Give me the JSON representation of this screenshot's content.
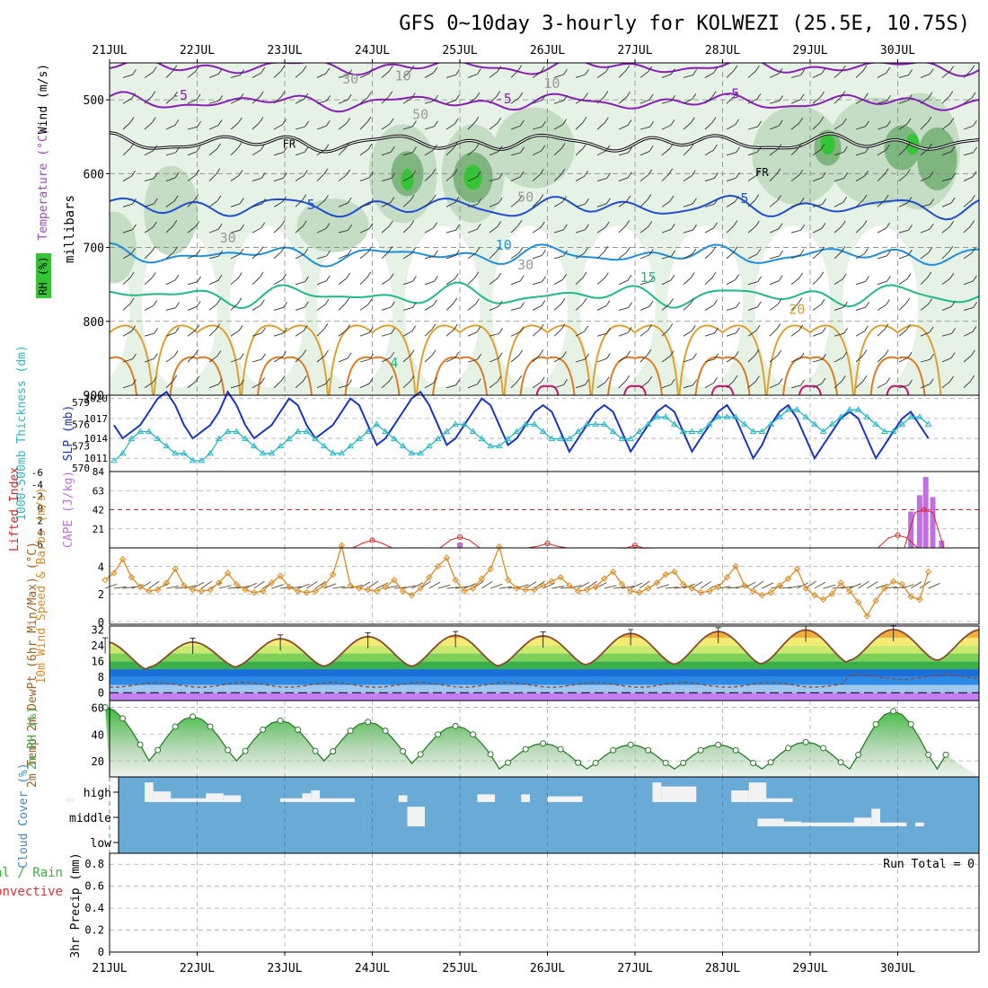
{
  "title": "GFS 0~10day 3-hourly for KOLWEZI (25.5E, 10.75S)",
  "colors": {
    "rh_light": "#e6f2e6",
    "rh_mid": "#c5dcc5",
    "rh_dark": "#7fb57f",
    "rh_green": "#35c435",
    "freeze": "#000000",
    "iso5": "#1f4fd0",
    "iso10": "#1f8fe0",
    "iso15": "#1fb98a",
    "iso20": "#e0a030",
    "iso25": "#e07a20",
    "iso30": "#d01070",
    "isoneg5": "#8a1fb8",
    "slp": "#1a35c0",
    "thickness": "#2ab8c8",
    "li": "#e02020",
    "cape": "#c070e0",
    "wind10": "#e08a20",
    "cloud_bg": "#6aaad6",
    "cloud_bar": "#f2f2f2",
    "rh2m": "#44aa44"
  },
  "chart_data": [
    {
      "panel": "upper_air",
      "type": "contour",
      "dates": [
        "21JUL",
        "22JUL",
        "23JUL",
        "24JUL",
        "25JUL",
        "26JUL",
        "27JUL",
        "28JUL",
        "29JUL",
        "30JUL"
      ],
      "ylabel": "millibars",
      "ylim": [
        900,
        450
      ],
      "ticks": [
        500,
        600,
        700,
        800,
        900
      ],
      "side_labels": {
        "rh": "RH (%)",
        "temp": "Temperature (°C)",
        "wind": "Wind (m/s)"
      },
      "contour_labels": [
        "-5",
        "-5",
        "-5",
        "5",
        "5",
        "10",
        "15",
        "20",
        "4",
        "FR",
        "FR",
        "10",
        "10",
        "30",
        "30",
        "30",
        "50",
        "50"
      ]
    },
    {
      "panel": "slp_thickness",
      "type": "line",
      "ylabel_left": "1000-500mb Thickness (dm)",
      "ylabel_right": "SLP (mb)",
      "left_ticks": [
        570,
        573,
        576,
        579
      ],
      "right_ticks": [
        1011,
        1014,
        1017,
        1020
      ],
      "slp": [
        1014,
        1018,
        1019,
        1020,
        1021,
        1019,
        1016,
        1014,
        1015,
        1016,
        1018,
        1020,
        1021,
        1019,
        1016,
        1014,
        1015,
        1016,
        1018,
        1021,
        1019,
        1016,
        1014,
        1015,
        1016,
        1018,
        1020,
        1019,
        1016,
        1014,
        1015,
        1016,
        1018,
        1020,
        1019,
        1016,
        1013,
        1014,
        1016,
        1018,
        1020,
        1021,
        1019,
        1016,
        1013,
        1014,
        1016,
        1018,
        1020,
        1019,
        1016,
        1013,
        1014,
        1016,
        1018,
        1019,
        1018,
        1015,
        1012,
        1014,
        1016,
        1018,
        1019,
        1018,
        1015,
        1012,
        1014,
        1016,
        1018,
        1019,
        1018,
        1015,
        1012,
        1014,
        1016,
        1018,
        1019,
        1017,
        1014,
        1011,
        1013,
        1016,
        1018,
        1019,
        1017,
        1014,
        1011,
        1013,
        1015,
        1017,
        1018,
        1017,
        1014,
        1011,
        1013,
        1015,
        1017,
        1018,
        1016,
        1014
      ],
      "thickness": [
        575,
        575,
        574,
        573,
        572,
        571,
        571,
        572,
        574,
        575,
        575,
        574,
        573,
        572,
        572,
        571,
        571,
        572,
        574,
        575,
        575,
        574,
        573,
        572,
        572,
        573,
        574,
        575,
        575,
        574,
        573,
        572,
        572,
        573,
        574,
        575,
        576,
        575,
        574,
        573,
        572,
        572,
        573,
        574,
        575,
        576,
        576,
        575,
        574,
        573,
        573,
        574,
        575,
        576,
        576,
        575,
        574,
        574,
        574,
        575,
        576,
        576,
        576,
        575,
        574,
        574,
        575,
        576,
        577,
        577,
        576,
        575,
        575,
        575,
        576,
        577,
        577,
        577,
        576,
        575,
        575,
        576,
        577,
        578,
        578,
        577,
        576,
        575,
        576,
        577,
        578,
        578,
        577,
        576,
        575,
        575,
        576,
        577,
        577,
        576
      ]
    },
    {
      "panel": "li_cape",
      "type": "bar",
      "ylabel_left": "Lifted Index",
      "ylabel_right": "CAPE (J/kg)",
      "left_ticks": [
        "-6",
        "-4",
        "-2",
        "0",
        "2",
        "4",
        "6"
      ],
      "right_ticks": [
        21,
        42,
        63,
        84
      ],
      "cape_bars": [
        {
          "day": 4.55,
          "value": 6
        },
        {
          "day": 9.7,
          "value": 40
        },
        {
          "day": 9.8,
          "value": 58
        },
        {
          "day": 9.87,
          "value": 78
        },
        {
          "day": 9.95,
          "value": 56
        },
        {
          "day": 10.05,
          "value": 8
        }
      ],
      "li_peaks": [
        {
          "day": 3.55,
          "value": 4.8
        },
        {
          "day": 4.55,
          "value": 4.3
        },
        {
          "day": 5.55,
          "value": 5.3
        },
        {
          "day": 6.55,
          "value": 5.6
        },
        {
          "day": 9.55,
          "value": 4.0
        },
        {
          "day": 9.85,
          "value": 0.0
        }
      ]
    },
    {
      "panel": "wind10m",
      "type": "line",
      "ylabel": "10m Wind Speed & Barbs (m/s)",
      "ylim": [
        0,
        5
      ],
      "ticks": [
        0,
        2,
        4
      ],
      "values": [
        3.5,
        4.0,
        2.5,
        2.5,
        2.7,
        3.0,
        3.5,
        4.5,
        3.2,
        2.5,
        2.2,
        2.3,
        2.8,
        3.8,
        2.6,
        2.3,
        2.2,
        2.3,
        2.8,
        3.5,
        2.7,
        2.3,
        2.1,
        2.2,
        2.8,
        3.3,
        2.5,
        2.2,
        2.1,
        2.2,
        2.6,
        3.4,
        5.5,
        2.6,
        2.4,
        2.3,
        2.2,
        2.5,
        3.0,
        2.2,
        1.9,
        2.4,
        3.2,
        4.0,
        4.6,
        3.0,
        2.2,
        2.4,
        3.1,
        3.8,
        5.4,
        3.0,
        2.4,
        2.3,
        2.3,
        2.6,
        2.9,
        3.2,
        2.6,
        2.2,
        2.3,
        2.5,
        3.1,
        3.6,
        2.7,
        2.2,
        2.1,
        2.4,
        2.8,
        3.4,
        3.6,
        2.7,
        2.4,
        2.1,
        2.2,
        2.5,
        3.2,
        4.0,
        2.6,
        2.2,
        1.9,
        2.1,
        2.6,
        3.1,
        3.8,
        2.4,
        1.9,
        1.6,
        2.0,
        2.8,
        2.2,
        1.4,
        0.4,
        1.5,
        2.4,
        2.9,
        2.7,
        1.8,
        1.6,
        3.6
      ]
    },
    {
      "panel": "temp2m",
      "type": "area",
      "ylabel": "2m Temp 2m DewPt (6hr Min/Max) (°C)",
      "ylim": [
        -4,
        34
      ],
      "ticks": [
        0,
        8,
        16,
        24,
        32
      ],
      "max_temp": [
        26.0,
        25.8,
        27.5,
        28.6,
        29.2,
        29.0,
        30.2,
        31.2,
        32.0,
        32.2
      ],
      "min_temp": [
        11.5,
        13.0,
        13.5,
        13.5,
        13.5,
        14.0,
        14.5,
        14.5,
        15.0,
        16.5
      ],
      "dewpt_base": 4
    },
    {
      "panel": "rh2m",
      "type": "area",
      "ylabel": "2m RH (%)",
      "ylim": [
        8,
        65
      ],
      "ticks": [
        20,
        40,
        60
      ],
      "max_rh": [
        60,
        53,
        50,
        49,
        46,
        33,
        32,
        32,
        34,
        57
      ],
      "min_rh": [
        23,
        20,
        20,
        20,
        18,
        14,
        14,
        14,
        14,
        14
      ]
    },
    {
      "panel": "cloud",
      "type": "bar",
      "ylabel": "Cloud Cover (%)",
      "levels": [
        "high",
        "middle",
        "low"
      ],
      "high": [
        {
          "start": 0.05,
          "end": 0.15,
          "value": 0.1
        },
        {
          "start": 0.95,
          "end": 1.05,
          "value": 0.9
        },
        {
          "start": 1.05,
          "end": 1.25,
          "value": 0.45
        },
        {
          "start": 1.25,
          "end": 1.65,
          "value": 0.1
        },
        {
          "start": 1.65,
          "end": 1.85,
          "value": 0.35
        },
        {
          "start": 1.85,
          "end": 2.05,
          "value": 0.25
        },
        {
          "start": 2.5,
          "end": 2.75,
          "value": 0.1
        },
        {
          "start": 2.75,
          "end": 2.85,
          "value": 0.35
        },
        {
          "start": 2.85,
          "end": 2.95,
          "value": 0.5
        },
        {
          "start": 2.95,
          "end": 3.35,
          "value": 0.1
        },
        {
          "start": 3.85,
          "end": 3.95,
          "value": 0.25
        },
        {
          "start": 4.75,
          "end": 4.95,
          "value": 0.3
        },
        {
          "start": 5.25,
          "end": 5.35,
          "value": 0.3
        },
        {
          "start": 5.55,
          "end": 5.95,
          "value": 0.2
        },
        {
          "start": 6.75,
          "end": 6.85,
          "value": 0.9
        },
        {
          "start": 6.85,
          "end": 7.25,
          "value": 0.7
        },
        {
          "start": 7.65,
          "end": 7.85,
          "value": 0.5
        },
        {
          "start": 7.85,
          "end": 8.05,
          "value": 0.9
        },
        {
          "start": 8.05,
          "end": 8.35,
          "value": 0.1
        }
      ],
      "middle": [
        {
          "start": 3.95,
          "end": 4.15,
          "value": 0.9
        },
        {
          "start": 7.95,
          "end": 8.25,
          "value": 0.3
        },
        {
          "start": 8.25,
          "end": 8.45,
          "value": 0.15
        },
        {
          "start": 8.45,
          "end": 9.05,
          "value": 0.1
        },
        {
          "start": 9.05,
          "end": 9.25,
          "value": 0.35
        },
        {
          "start": 9.25,
          "end": 9.35,
          "value": 0.8
        },
        {
          "start": 9.35,
          "end": 9.65,
          "value": 0.1
        },
        {
          "start": 9.75,
          "end": 9.85,
          "value": 0.1
        }
      ]
    },
    {
      "panel": "precip",
      "type": "bar",
      "ylabel": "3hr Precip (mm)",
      "legend_total": "Total / Rain",
      "legend_conv": "Convective",
      "run_total": "Run Total = 0",
      "ylim": [
        0,
        1
      ],
      "ticks": [
        "0",
        "0.2",
        "0.4",
        "0.6",
        "0.8"
      ],
      "values": []
    }
  ]
}
